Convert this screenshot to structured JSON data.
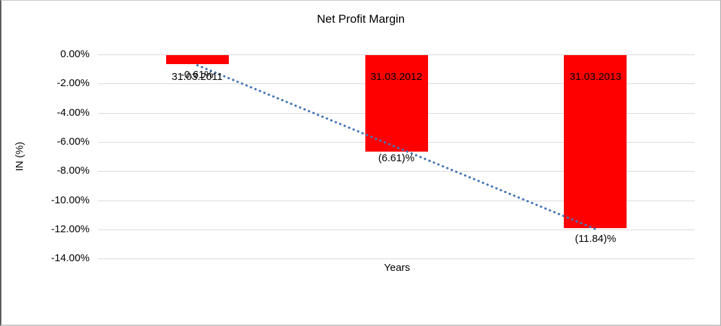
{
  "chart_data": {
    "type": "bar",
    "title": "Net Profit Margin",
    "xlabel": "Years",
    "ylabel": "IN (%)",
    "categories": [
      "31.03.2011",
      "31.03.2012",
      "31.03.2013"
    ],
    "values": [
      -0.61,
      -6.61,
      -11.84
    ],
    "data_labels": [
      "-0.61%",
      "(6.61)%",
      "(11.84)%"
    ],
    "y_ticks": [
      "0.00%",
      "-2.00%",
      "-4.00%",
      "-6.00%",
      "-8.00%",
      "-10.00%",
      "-12.00%",
      "-14.00%"
    ],
    "y_tick_values": [
      0,
      -2,
      -4,
      -6,
      -8,
      -10,
      -12,
      -14
    ],
    "ylim": [
      -14,
      0
    ],
    "grid": true,
    "legend": "none",
    "bar_color": "#ff0000",
    "trendline": {
      "type": "linear",
      "style": "dotted",
      "color": "#4576b5"
    }
  }
}
